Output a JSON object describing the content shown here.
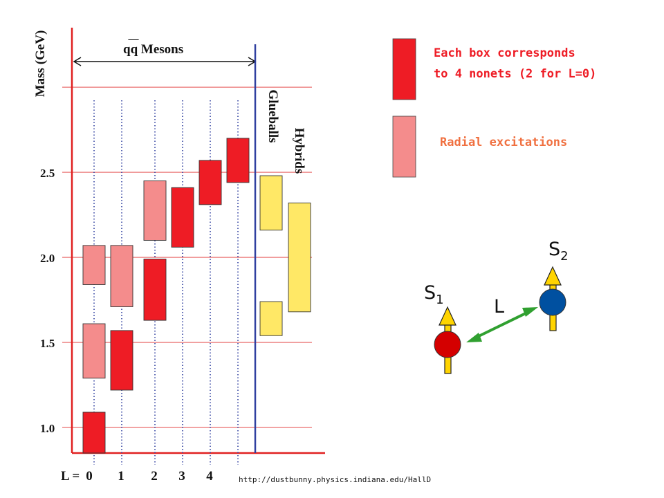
{
  "title": {
    "prefix": "qq",
    "rest": " Mesons"
  },
  "axis": {
    "ylabel": "Mass (GeV)",
    "ylim": [
      0.85,
      3.35
    ],
    "yticks": [
      {
        "value": 1.0,
        "label": "1.0"
      },
      {
        "value": 1.5,
        "label": "1.5"
      },
      {
        "value": 2.0,
        "label": "2.0"
      },
      {
        "value": 2.5,
        "label": "2.5"
      },
      {
        "value": 3.0,
        "label": ""
      }
    ],
    "x_prefix": "L = ",
    "xticks": [
      "0",
      "1",
      "2",
      "3",
      "4"
    ]
  },
  "columns": {
    "glueballs": "Glueballs",
    "hybrids": "Hybrids"
  },
  "legend": {
    "nonet_line1": "Each box corresponds",
    "nonet_line2": "to 4 nonets (2 for L=0)",
    "radial": "Radial excitations"
  },
  "spin_diagram": {
    "s1_label": "S",
    "s1_sub": "1",
    "s2_label": "S",
    "s2_sub": "2",
    "l_label": "L"
  },
  "source_url": "http://dustbunny.physics.indiana.edu/HallD",
  "colors": {
    "axis": "#e02020",
    "grid": "#e03030",
    "divider": "#3040a0",
    "ground": "#ee1c25",
    "radial": "#f48c8c",
    "exotic": "#ffe866",
    "text_red": "#ee1c25",
    "text_orange": "#f07040",
    "quark1": "#d40000",
    "quark2": "#0050a0",
    "spin_arrow": "#ffd400",
    "l_arrow": "#30a030"
  },
  "chart_data": {
    "type": "bar",
    "ylabel": "Mass (GeV)",
    "ylim": [
      0.85,
      3.35
    ],
    "series": [
      {
        "name": "Each box corresponds to 4 nonets (2 for L=0)",
        "kind": "ground",
        "boxes": [
          {
            "L": 0,
            "low": 0.85,
            "high": 1.09
          },
          {
            "L": 1,
            "low": 1.22,
            "high": 1.57
          },
          {
            "L": 2,
            "low": 1.63,
            "high": 1.99
          },
          {
            "L": 3,
            "low": 2.06,
            "high": 2.41
          },
          {
            "L": 4,
            "low": 2.31,
            "high": 2.57
          },
          {
            "L": 5,
            "low": 2.44,
            "high": 2.7
          }
        ]
      },
      {
        "name": "Radial excitations",
        "kind": "radial",
        "boxes": [
          {
            "L": 0,
            "low": 1.29,
            "high": 1.61
          },
          {
            "L": 0,
            "low": 1.84,
            "high": 2.07
          },
          {
            "L": 1,
            "low": 1.71,
            "high": 2.07
          },
          {
            "L": 2,
            "low": 2.1,
            "high": 2.45
          }
        ]
      },
      {
        "name": "Glueballs",
        "kind": "exotic",
        "boxes": [
          {
            "low": 2.16,
            "high": 2.48
          },
          {
            "low": 1.54,
            "high": 1.74
          }
        ]
      },
      {
        "name": "Hybrids",
        "kind": "exotic",
        "boxes": [
          {
            "low": 1.68,
            "high": 2.32
          }
        ]
      }
    ]
  }
}
